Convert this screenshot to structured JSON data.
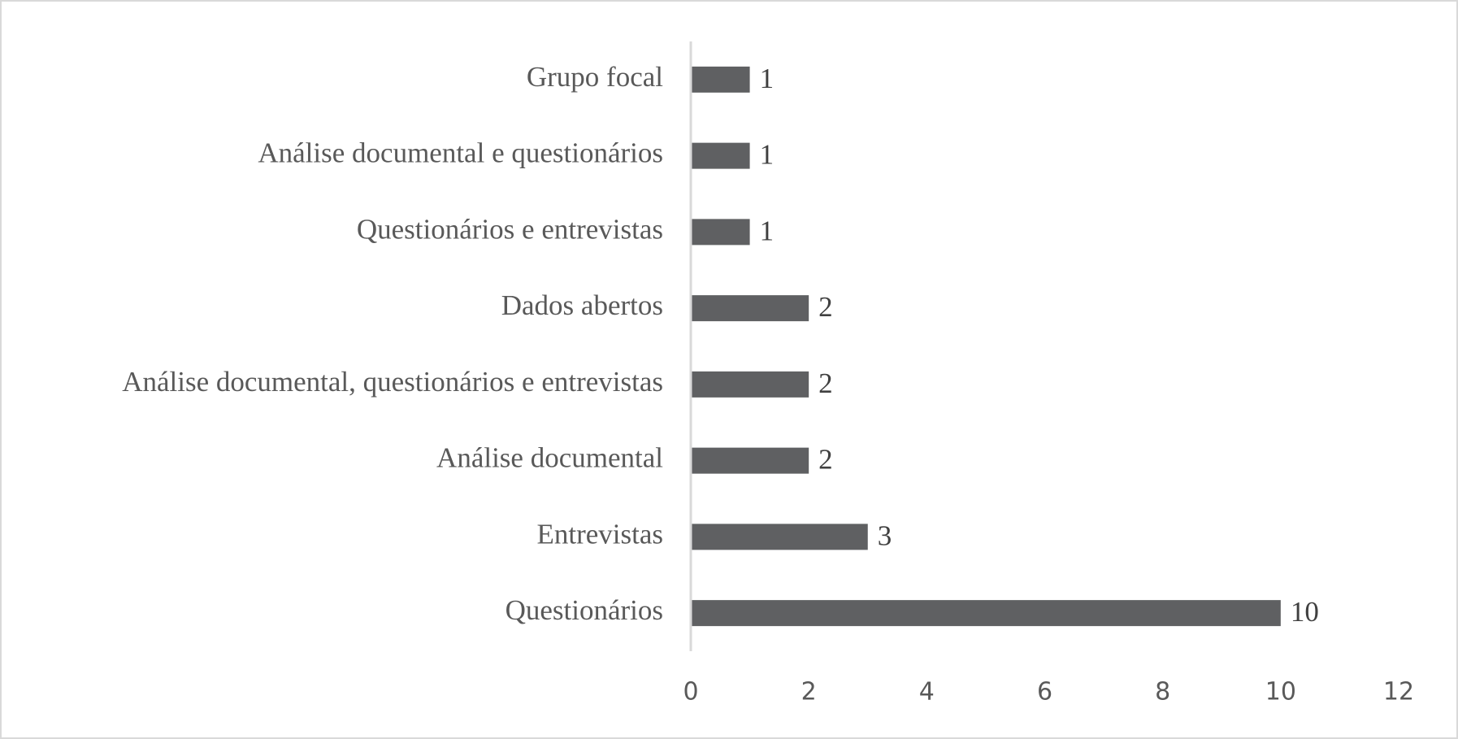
{
  "chart_data": {
    "type": "bar",
    "orientation": "horizontal",
    "categories": [
      "Grupo focal",
      "Análise documental e questionários",
      "Questionários e entrevistas",
      "Dados abertos",
      "Análise documental, questionários e entrevistas",
      "Análise documental",
      "Entrevistas",
      "Questionários"
    ],
    "values": [
      1,
      1,
      1,
      2,
      2,
      2,
      3,
      10
    ],
    "color": "#5f6062",
    "xlim": [
      0,
      12
    ],
    "xticks": [
      0,
      2,
      4,
      6,
      8,
      10,
      12
    ],
    "grid": false
  }
}
